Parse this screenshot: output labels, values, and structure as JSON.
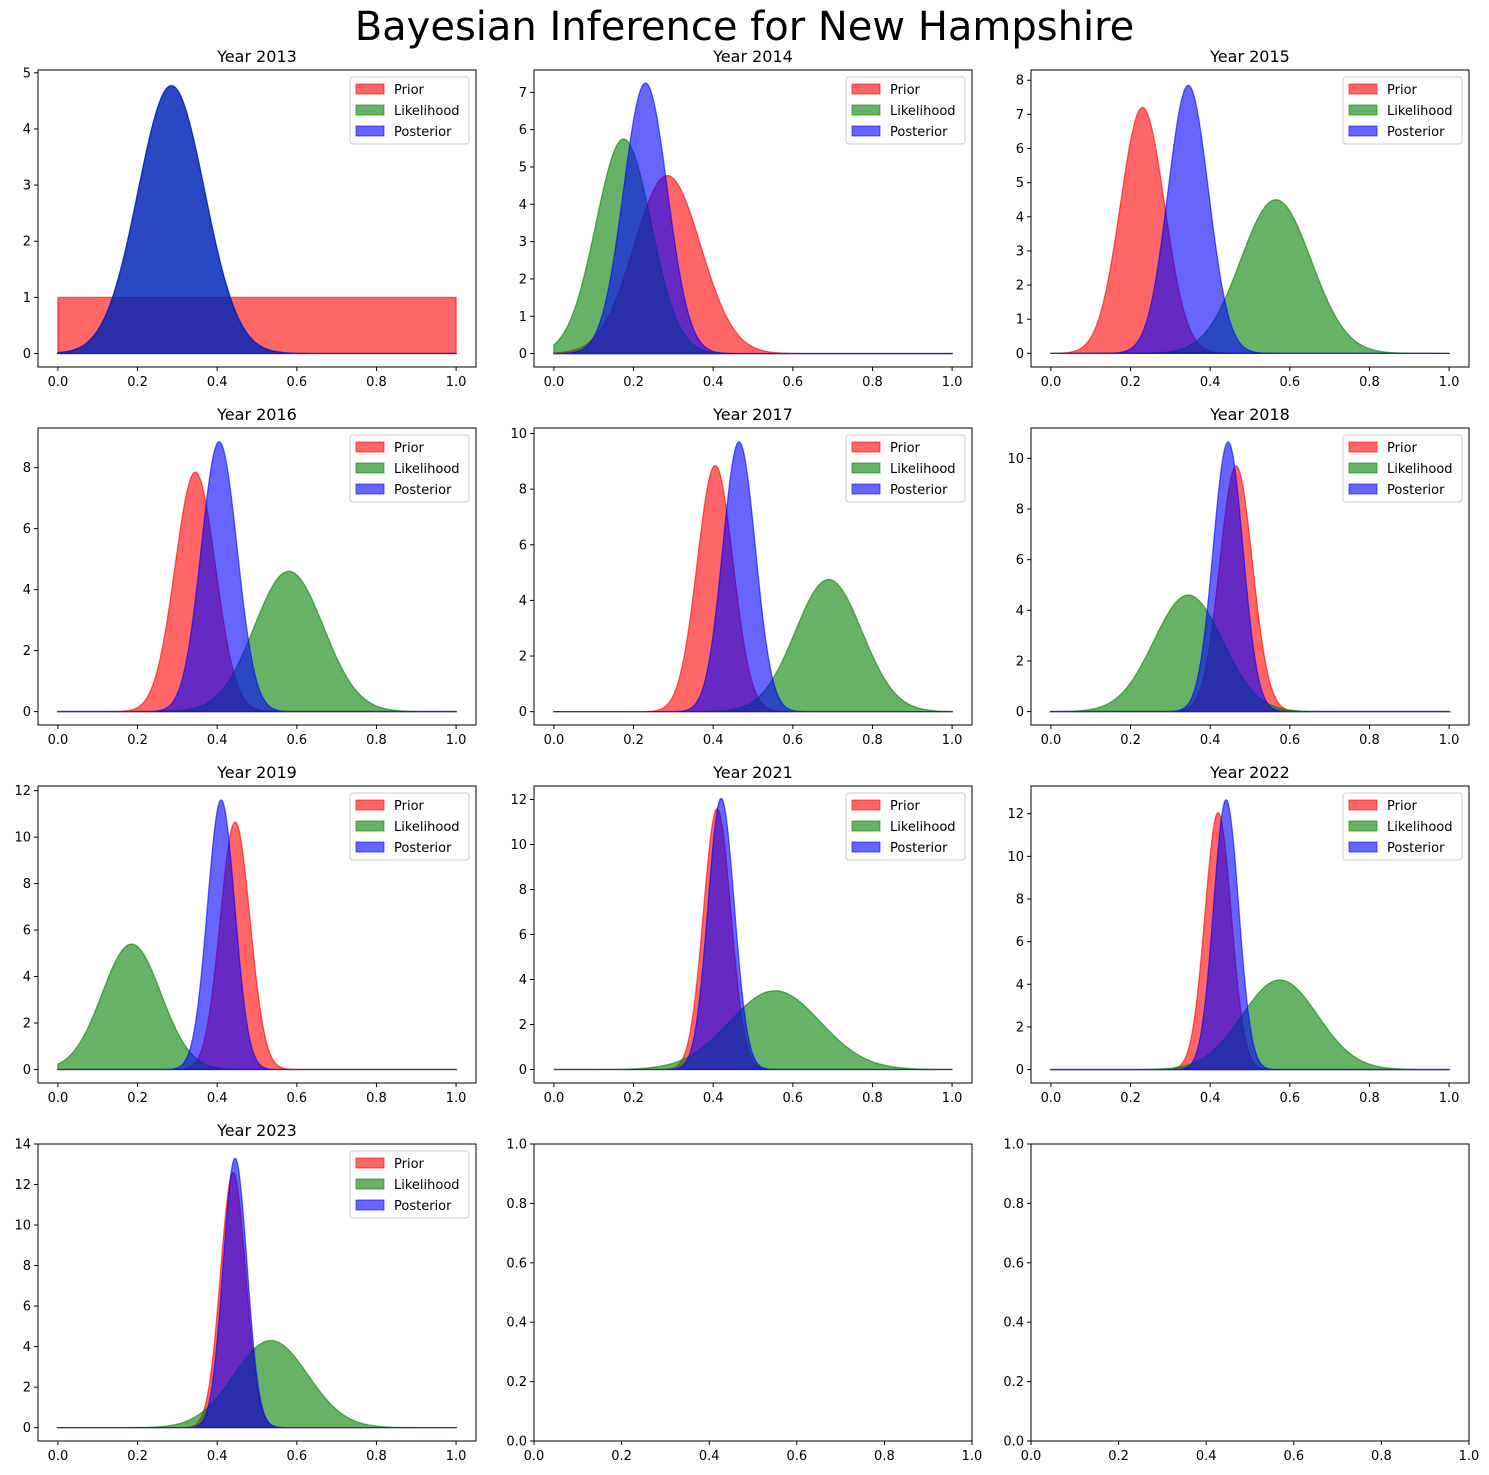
{
  "title": "Bayesian Inference for New Hampshire",
  "colors": {
    "prior": "#ff0000",
    "likelihood": "#008000",
    "posterior": "#0000ff"
  },
  "chart_data": [
    {
      "type": "area",
      "title": "Year 2013",
      "xlim": [
        0,
        1
      ],
      "ylim": [
        -0.24,
        5.05
      ],
      "xticks": [
        "0.0",
        "0.2",
        "0.4",
        "0.6",
        "0.8",
        "1.0"
      ],
      "yticks": [
        "0",
        "1",
        "2",
        "3",
        "4",
        "5"
      ],
      "legend": {
        "placement": "top-right",
        "entries": [
          "Prior",
          "Likelihood",
          "Posterior"
        ]
      },
      "series": [
        {
          "name": "Prior",
          "dist": "uniform",
          "mean": 0.5,
          "peak": 1.0
        },
        {
          "name": "Likelihood",
          "dist": "normal",
          "mean": 0.285,
          "peak": 4.77
        },
        {
          "name": "Posterior",
          "dist": "normal",
          "mean": 0.285,
          "peak": 4.77
        }
      ]
    },
    {
      "type": "area",
      "title": "Year 2014",
      "xlim": [
        0,
        1
      ],
      "ylim": [
        -0.36,
        7.6
      ],
      "xticks": [
        "0.0",
        "0.2",
        "0.4",
        "0.6",
        "0.8",
        "1.0"
      ],
      "yticks": [
        "0",
        "1",
        "2",
        "3",
        "4",
        "5",
        "6",
        "7"
      ],
      "legend": {
        "placement": "top-right",
        "entries": [
          "Prior",
          "Likelihood",
          "Posterior"
        ]
      },
      "series": [
        {
          "name": "Prior",
          "dist": "normal",
          "mean": 0.285,
          "peak": 4.77
        },
        {
          "name": "Likelihood",
          "dist": "normal",
          "mean": 0.175,
          "peak": 5.75
        },
        {
          "name": "Posterior",
          "dist": "normal",
          "mean": 0.23,
          "peak": 7.25
        }
      ]
    },
    {
      "type": "area",
      "title": "Year 2015",
      "xlim": [
        0,
        1
      ],
      "ylim": [
        -0.4,
        8.3
      ],
      "xticks": [
        "0.0",
        "0.2",
        "0.4",
        "0.6",
        "0.8",
        "1.0"
      ],
      "yticks": [
        "0",
        "1",
        "2",
        "3",
        "4",
        "5",
        "6",
        "7",
        "8"
      ],
      "legend": {
        "placement": "top-right",
        "entries": [
          "Prior",
          "Likelihood",
          "Posterior"
        ]
      },
      "series": [
        {
          "name": "Prior",
          "dist": "normal",
          "mean": 0.23,
          "peak": 7.2
        },
        {
          "name": "Likelihood",
          "dist": "normal",
          "mean": 0.565,
          "peak": 4.5
        },
        {
          "name": "Posterior",
          "dist": "normal",
          "mean": 0.345,
          "peak": 7.85
        }
      ]
    },
    {
      "type": "area",
      "title": "Year 2016",
      "xlim": [
        0,
        1
      ],
      "ylim": [
        -0.44,
        9.3
      ],
      "xticks": [
        "0.0",
        "0.2",
        "0.4",
        "0.6",
        "0.8",
        "1.0"
      ],
      "yticks": [
        "0",
        "2",
        "4",
        "6",
        "8"
      ],
      "legend": {
        "placement": "top-right",
        "entries": [
          "Prior",
          "Likelihood",
          "Posterior"
        ]
      },
      "series": [
        {
          "name": "Prior",
          "dist": "normal",
          "mean": 0.345,
          "peak": 7.85
        },
        {
          "name": "Likelihood",
          "dist": "normal",
          "mean": 0.58,
          "peak": 4.6
        },
        {
          "name": "Posterior",
          "dist": "normal",
          "mean": 0.405,
          "peak": 8.85
        }
      ]
    },
    {
      "type": "area",
      "title": "Year 2017",
      "xlim": [
        0,
        1
      ],
      "ylim": [
        -0.48,
        10.2
      ],
      "xticks": [
        "0.0",
        "0.2",
        "0.4",
        "0.6",
        "0.8",
        "1.0"
      ],
      "yticks": [
        "0",
        "2",
        "4",
        "6",
        "8",
        "10"
      ],
      "legend": {
        "placement": "top-right",
        "entries": [
          "Prior",
          "Likelihood",
          "Posterior"
        ]
      },
      "series": [
        {
          "name": "Prior",
          "dist": "normal",
          "mean": 0.405,
          "peak": 8.85
        },
        {
          "name": "Likelihood",
          "dist": "normal",
          "mean": 0.69,
          "peak": 4.75
        },
        {
          "name": "Posterior",
          "dist": "normal",
          "mean": 0.465,
          "peak": 9.7
        }
      ]
    },
    {
      "type": "area",
      "title": "Year 2018",
      "xlim": [
        0,
        1
      ],
      "ylim": [
        -0.53,
        11.2
      ],
      "xticks": [
        "0.0",
        "0.2",
        "0.4",
        "0.6",
        "0.8",
        "1.0"
      ],
      "yticks": [
        "0",
        "2",
        "4",
        "6",
        "8",
        "10"
      ],
      "legend": {
        "placement": "top-right",
        "entries": [
          "Prior",
          "Likelihood",
          "Posterior"
        ]
      },
      "series": [
        {
          "name": "Prior",
          "dist": "normal",
          "mean": 0.465,
          "peak": 9.7
        },
        {
          "name": "Likelihood",
          "dist": "normal",
          "mean": 0.345,
          "peak": 4.6
        },
        {
          "name": "Posterior",
          "dist": "normal",
          "mean": 0.445,
          "peak": 10.65
        }
      ]
    },
    {
      "type": "area",
      "title": "Year 2019",
      "xlim": [
        0,
        1
      ],
      "ylim": [
        -0.58,
        12.2
      ],
      "xticks": [
        "0.0",
        "0.2",
        "0.4",
        "0.6",
        "0.8",
        "1.0"
      ],
      "yticks": [
        "0",
        "2",
        "4",
        "6",
        "8",
        "10",
        "12"
      ],
      "legend": {
        "placement": "top-right",
        "entries": [
          "Prior",
          "Likelihood",
          "Posterior"
        ]
      },
      "series": [
        {
          "name": "Prior",
          "dist": "normal",
          "mean": 0.445,
          "peak": 10.65
        },
        {
          "name": "Likelihood",
          "dist": "normal",
          "mean": 0.185,
          "peak": 5.4
        },
        {
          "name": "Posterior",
          "dist": "normal",
          "mean": 0.41,
          "peak": 11.6
        }
      ]
    },
    {
      "type": "area",
      "title": "Year 2021",
      "xlim": [
        0,
        1
      ],
      "ylim": [
        -0.6,
        12.6
      ],
      "xticks": [
        "0.0",
        "0.2",
        "0.4",
        "0.6",
        "0.8",
        "1.0"
      ],
      "yticks": [
        "0",
        "2",
        "4",
        "6",
        "8",
        "10",
        "12"
      ],
      "legend": {
        "placement": "top-right",
        "entries": [
          "Prior",
          "Likelihood",
          "Posterior"
        ]
      },
      "series": [
        {
          "name": "Prior",
          "dist": "normal",
          "mean": 0.41,
          "peak": 11.6
        },
        {
          "name": "Likelihood",
          "dist": "normal",
          "mean": 0.555,
          "peak": 3.5
        },
        {
          "name": "Posterior",
          "dist": "normal",
          "mean": 0.42,
          "peak": 12.05
        }
      ]
    },
    {
      "type": "area",
      "title": "Year 2022",
      "xlim": [
        0,
        1
      ],
      "ylim": [
        -0.63,
        13.3
      ],
      "xticks": [
        "0.0",
        "0.2",
        "0.4",
        "0.6",
        "0.8",
        "1.0"
      ],
      "yticks": [
        "0",
        "2",
        "4",
        "6",
        "8",
        "10",
        "12"
      ],
      "legend": {
        "placement": "top-right",
        "entries": [
          "Prior",
          "Likelihood",
          "Posterior"
        ]
      },
      "series": [
        {
          "name": "Prior",
          "dist": "normal",
          "mean": 0.42,
          "peak": 12.05
        },
        {
          "name": "Likelihood",
          "dist": "normal",
          "mean": 0.575,
          "peak": 4.2
        },
        {
          "name": "Posterior",
          "dist": "normal",
          "mean": 0.44,
          "peak": 12.65
        }
      ]
    },
    {
      "type": "area",
      "title": "Year 2023",
      "xlim": [
        0,
        1
      ],
      "ylim": [
        -0.66,
        14.0
      ],
      "xticks": [
        "0.0",
        "0.2",
        "0.4",
        "0.6",
        "0.8",
        "1.0"
      ],
      "yticks": [
        "0",
        "2",
        "4",
        "6",
        "8",
        "10",
        "12",
        "14"
      ],
      "legend": {
        "placement": "top-right",
        "entries": [
          "Prior",
          "Likelihood",
          "Posterior"
        ]
      },
      "series": [
        {
          "name": "Prior",
          "dist": "normal",
          "mean": 0.44,
          "peak": 12.6
        },
        {
          "name": "Likelihood",
          "dist": "normal",
          "mean": 0.535,
          "peak": 4.3
        },
        {
          "name": "Posterior",
          "dist": "normal",
          "mean": 0.445,
          "peak": 13.3
        }
      ]
    },
    {
      "type": "area",
      "title": "",
      "xlim": [
        0,
        1
      ],
      "ylim": [
        0,
        1
      ],
      "xticks": [
        "0.0",
        "0.2",
        "0.4",
        "0.6",
        "0.8",
        "1.0"
      ],
      "yticks": [
        "0.0",
        "0.2",
        "0.4",
        "0.6",
        "0.8",
        "1.0"
      ],
      "series": []
    },
    {
      "type": "area",
      "title": "",
      "xlim": [
        0,
        1
      ],
      "ylim": [
        0,
        1
      ],
      "xticks": [
        "0.0",
        "0.2",
        "0.4",
        "0.6",
        "0.8",
        "1.0"
      ],
      "yticks": [
        "0.0",
        "0.2",
        "0.4",
        "0.6",
        "0.8",
        "1.0"
      ],
      "series": []
    }
  ]
}
